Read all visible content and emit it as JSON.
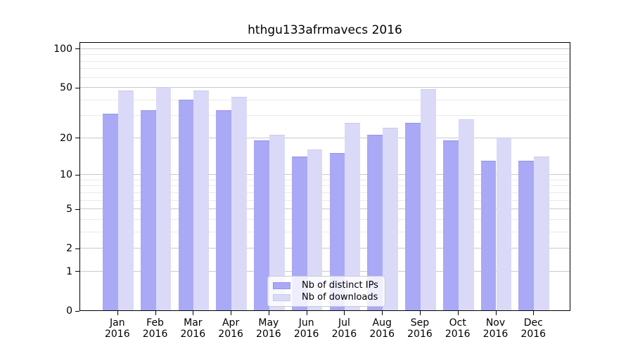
{
  "title": "hthgu133afrmavecs 2016",
  "chart_data": {
    "type": "bar",
    "title": "hthgu133afrmavecs 2016",
    "xlabel": "",
    "ylabel": "",
    "scale": "log1p",
    "grid": "on",
    "categories": [
      "Jan",
      "Feb",
      "Mar",
      "Apr",
      "May",
      "Jun",
      "Jul",
      "Aug",
      "Sep",
      "Oct",
      "Nov",
      "Dec"
    ],
    "year": "2016",
    "series": [
      {
        "name": "Nb of distinct IPs",
        "color": "#a9a9f6",
        "edge_color": "#9393e8",
        "values": [
          31,
          33,
          40,
          33,
          19,
          14,
          15,
          21,
          26,
          19,
          13,
          13
        ]
      },
      {
        "name": "Nb of downloads",
        "color": "#dadaf8",
        "edge_color": "#c9c9f0",
        "values": [
          47,
          50,
          47,
          42,
          21,
          16,
          26,
          24,
          48,
          28,
          20,
          14
        ]
      }
    ],
    "yticks": [
      0,
      1,
      2,
      5,
      10,
      20,
      50,
      100
    ],
    "minor_yticks": [
      3,
      4,
      6,
      7,
      8,
      9,
      30,
      40,
      60,
      70,
      80,
      90
    ],
    "ylim": [
      0,
      113
    ],
    "legend_position": "lower center"
  },
  "colors": {
    "grid_major": "#c9c9c9",
    "grid_minor": "#e9e9e9",
    "axis": "#000000",
    "background": "#ffffff"
  }
}
